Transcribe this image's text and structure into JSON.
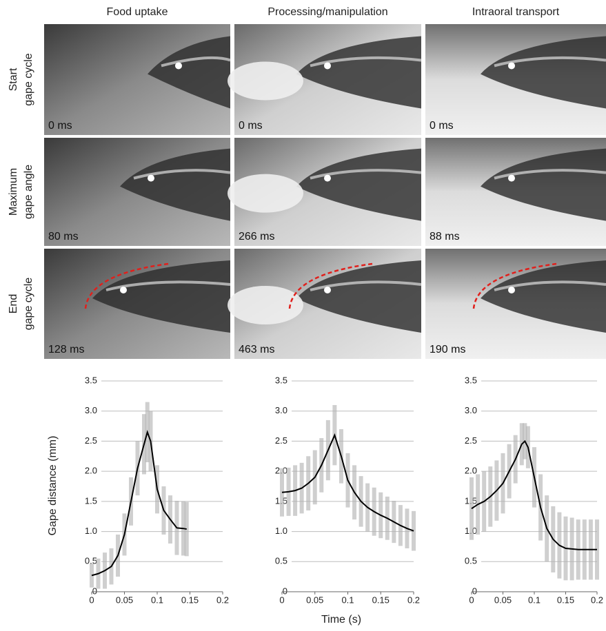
{
  "columns": [
    "Food uptake",
    "Processing/manipulation",
    "Intraoral transport"
  ],
  "rows": [
    {
      "label_lines": [
        "Start",
        "gape cycle"
      ]
    },
    {
      "label_lines": [
        "Maximum",
        "gape angle"
      ]
    },
    {
      "label_lines": [
        "End",
        "gape cycle"
      ]
    }
  ],
  "frames": [
    [
      "0 ms",
      "0 ms",
      "0 ms"
    ],
    [
      "80 ms",
      "266 ms",
      "88 ms"
    ],
    [
      "128 ms",
      "463 ms",
      "190 ms"
    ]
  ],
  "y_label": "Gape distance (mm)",
  "x_label": "Time (s)",
  "chart_data": [
    {
      "type": "line",
      "x": [
        0,
        0.01,
        0.02,
        0.03,
        0.04,
        0.05,
        0.06,
        0.07,
        0.08,
        0.085,
        0.09,
        0.1,
        0.11,
        0.12,
        0.13,
        0.14,
        0.145
      ],
      "values": [
        0.27,
        0.3,
        0.35,
        0.42,
        0.6,
        0.95,
        1.5,
        2.05,
        2.45,
        2.65,
        2.5,
        1.7,
        1.35,
        1.2,
        1.06,
        1.05,
        1.04
      ],
      "errors": [
        0.2,
        0.25,
        0.3,
        0.3,
        0.35,
        0.35,
        0.4,
        0.45,
        0.5,
        0.5,
        0.5,
        0.4,
        0.4,
        0.4,
        0.45,
        0.45,
        0.45
      ],
      "color": "#000000",
      "error_color": "#b0b0b0",
      "xlim": [
        0,
        0.2
      ],
      "xticks": [
        0,
        0.05,
        0.1,
        0.15,
        0.2
      ],
      "ylim": [
        0,
        3.5
      ],
      "yticks": [
        0,
        0.5,
        {
          "value": 1,
          "label": "1.0"
        },
        1.5,
        {
          "value": 2,
          "label": "2.0"
        },
        2.5,
        {
          "value": 3,
          "label": "3.0"
        },
        3.5
      ],
      "grid": true
    },
    {
      "type": "line",
      "x": [
        0,
        0.01,
        0.02,
        0.03,
        0.04,
        0.05,
        0.06,
        0.07,
        0.08,
        0.09,
        0.1,
        0.11,
        0.12,
        0.13,
        0.14,
        0.15,
        0.16,
        0.17,
        0.18,
        0.19,
        0.2
      ],
      "values": [
        1.65,
        1.66,
        1.68,
        1.72,
        1.8,
        1.9,
        2.1,
        2.35,
        2.6,
        2.25,
        1.85,
        1.65,
        1.5,
        1.4,
        1.33,
        1.27,
        1.22,
        1.16,
        1.1,
        1.05,
        1.01
      ],
      "errors": [
        0.4,
        0.4,
        0.42,
        0.42,
        0.45,
        0.45,
        0.45,
        0.5,
        0.5,
        0.45,
        0.45,
        0.45,
        0.42,
        0.4,
        0.4,
        0.38,
        0.36,
        0.35,
        0.34,
        0.33,
        0.33
      ],
      "color": "#000000",
      "error_color": "#b0b0b0",
      "xlim": [
        0,
        0.2
      ],
      "xticks": [
        0,
        0.05,
        0.1,
        0.15,
        0.2
      ],
      "ylim": [
        0,
        3.5
      ],
      "yticks": [
        0,
        0.5,
        {
          "value": 1,
          "label": "1.0"
        },
        1.5,
        {
          "value": 2,
          "label": "2.0"
        },
        2.5,
        {
          "value": 3,
          "label": "3.0"
        },
        3.5
      ],
      "grid": true
    },
    {
      "type": "line",
      "x": [
        0,
        0.01,
        0.02,
        0.03,
        0.04,
        0.05,
        0.06,
        0.07,
        0.08,
        0.085,
        0.09,
        0.1,
        0.11,
        0.12,
        0.13,
        0.14,
        0.15,
        0.16,
        0.17,
        0.18,
        0.19,
        0.2
      ],
      "values": [
        1.38,
        1.45,
        1.5,
        1.58,
        1.68,
        1.8,
        2.0,
        2.2,
        2.45,
        2.5,
        2.4,
        1.9,
        1.4,
        1.05,
        0.87,
        0.77,
        0.72,
        0.71,
        0.7,
        0.7,
        0.7,
        0.7
      ],
      "errors": [
        0.52,
        0.5,
        0.5,
        0.5,
        0.5,
        0.5,
        0.45,
        0.4,
        0.35,
        0.3,
        0.35,
        0.5,
        0.55,
        0.55,
        0.55,
        0.55,
        0.53,
        0.52,
        0.5,
        0.5,
        0.5,
        0.5
      ],
      "color": "#000000",
      "error_color": "#b0b0b0",
      "xlim": [
        0,
        0.2
      ],
      "xticks": [
        0,
        0.05,
        0.1,
        0.15,
        0.2
      ],
      "ylim": [
        0,
        3.5
      ],
      "yticks": [
        0,
        0.5,
        {
          "value": 1,
          "label": "1.0"
        },
        1.5,
        {
          "value": 2,
          "label": "2.0"
        },
        2.5,
        {
          "value": 3,
          "label": "3.0"
        },
        3.5
      ],
      "grid": true
    }
  ]
}
